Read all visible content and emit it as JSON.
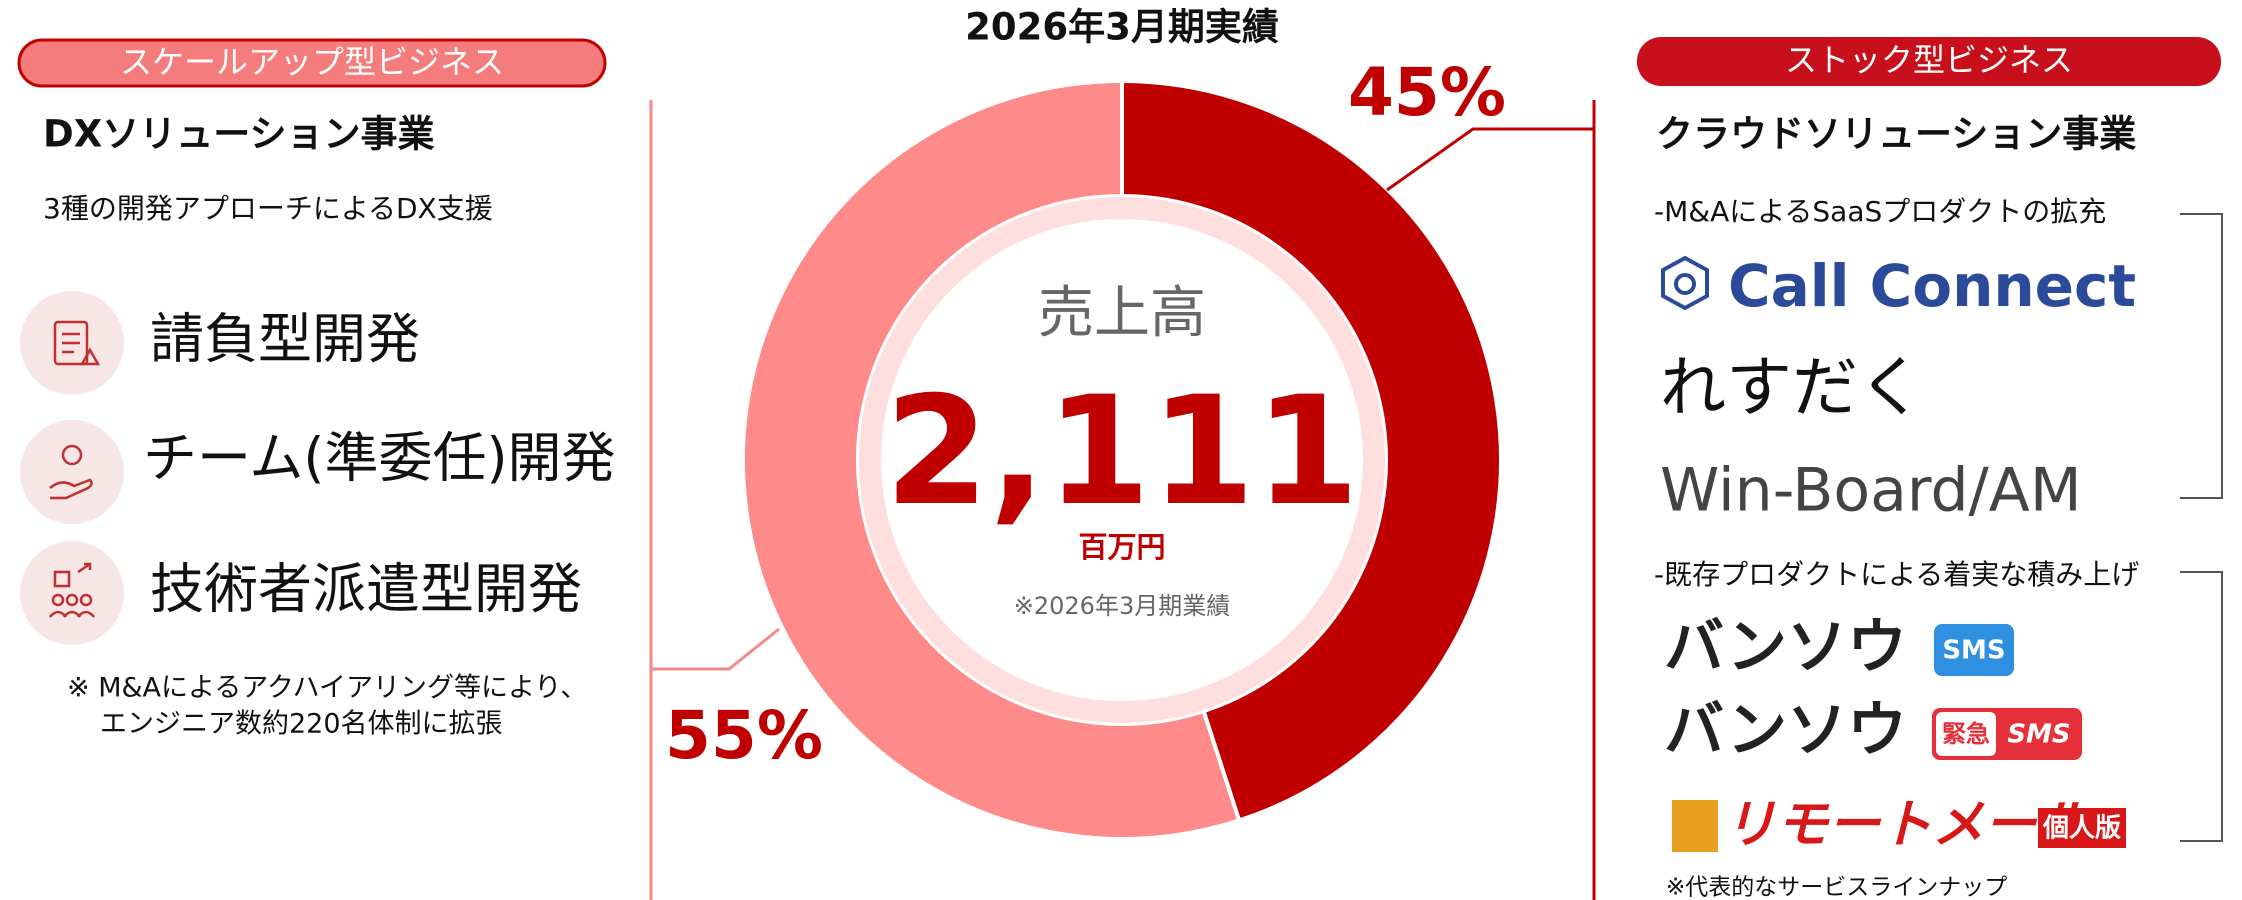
{
  "chart_data": {
    "type": "pie",
    "donut": true,
    "title": "2026年3月期実績",
    "values": [
      45,
      55
    ],
    "value_labels": [
      "45%",
      "55%"
    ],
    "colors": [
      "#c00000",
      "#ff8a8a"
    ],
    "center": {
      "label": "売上高",
      "value": "2,111",
      "unit": "百万円",
      "note": "※2026年3月期業績"
    }
  },
  "left": {
    "badge": "スケールアップ型ビジネス",
    "heading": "DXソリューション事業",
    "subheading": "3種の開発アプローチによるDX支援",
    "items": [
      "請負型開発",
      "チーム(準委任)開発",
      "技術者派遣型開発"
    ],
    "note": [
      "※ M&Aによるアクハイアリング等により、",
      "エンジニア数約220名体制に拡張"
    ]
  },
  "right": {
    "badge": "ストック型ビジネス",
    "heading": "クラウドソリューション事業",
    "group1": {
      "caption": "-M&AによるSaaSプロダクトの拡充",
      "logos": [
        "Call Connect",
        "れすだく",
        "Win-Board/AM"
      ]
    },
    "group2": {
      "caption": "-既存プロダクトによる着実な積み上げ",
      "logos": [
        "バンソウ",
        "バンソウ",
        "リモートメール"
      ],
      "badges": [
        "SMS",
        "緊急",
        "SMS",
        "個人版"
      ]
    },
    "footnote": "※代表的なサービスラインナップ"
  }
}
